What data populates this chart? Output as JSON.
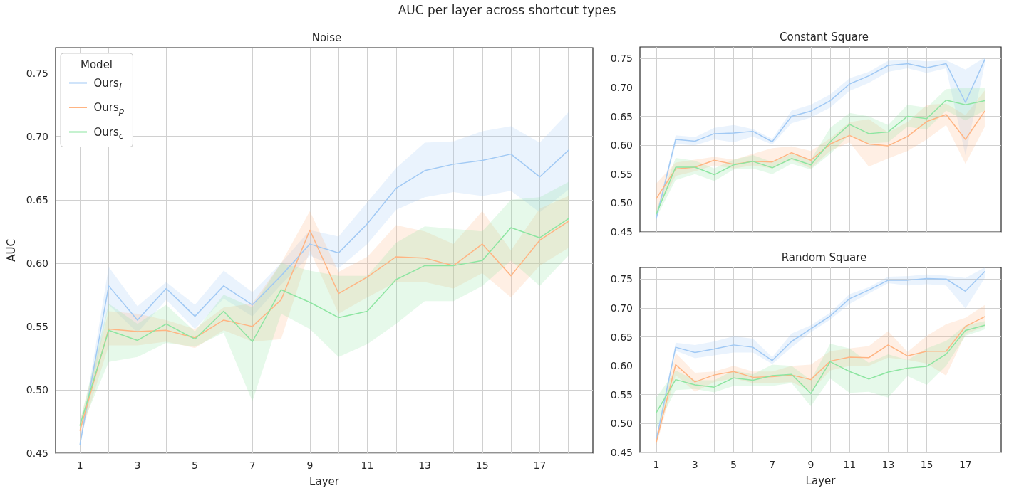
{
  "chart_data": [
    {
      "type": "line",
      "title": "AUC per layer across shortcut types",
      "subtitle": "Noise",
      "xlabel": "Layer",
      "ylabel": "AUC",
      "legend_title": "Model",
      "legend": "top left",
      "grid": true,
      "line_style": "solid",
      "marker": "none",
      "x": [
        1,
        2,
        3,
        4,
        5,
        6,
        7,
        8,
        9,
        10,
        11,
        12,
        13,
        14,
        15,
        16,
        17,
        18
      ],
      "xlim": [
        0.15,
        18.85
      ],
      "xticks": [
        1,
        {
          "value": 2,
          "label": null
        },
        3,
        {
          "value": 4,
          "label": null
        },
        5,
        {
          "value": 6,
          "label": null
        },
        7,
        {
          "value": 8,
          "label": null
        },
        9,
        {
          "value": 10,
          "label": null
        },
        11,
        {
          "value": 12,
          "label": null
        },
        13,
        {
          "value": 14,
          "label": null
        },
        15,
        {
          "value": 16,
          "label": null
        },
        17,
        {
          "value": 18,
          "label": null
        }
      ],
      "ylim": [
        0.45,
        0.77
      ],
      "yticks": [
        {
          "value": 0.45,
          "label": "0.45"
        },
        {
          "value": 0.5,
          "label": "0.50"
        },
        {
          "value": 0.55,
          "label": "0.55"
        },
        {
          "value": 0.6,
          "label": "0.60"
        },
        {
          "value": 0.65,
          "label": "0.65"
        },
        {
          "value": 0.7,
          "label": "0.70"
        },
        {
          "value": 0.75,
          "label": "0.75"
        }
      ],
      "series": [
        {
          "name": "Ours$_{f}$",
          "color": "#a1c9f4",
          "values": [
            0.457,
            0.582,
            0.555,
            0.58,
            0.558,
            0.582,
            0.567,
            0.59,
            0.615,
            0.608,
            0.631,
            0.659,
            0.673,
            0.678,
            0.681,
            0.686,
            0.668,
            0.689
          ],
          "lower": [
            0.455,
            0.567,
            0.545,
            0.571,
            0.548,
            0.572,
            0.558,
            0.583,
            0.606,
            0.596,
            0.615,
            0.642,
            0.652,
            0.656,
            0.653,
            0.657,
            0.64,
            0.658
          ],
          "upper": [
            0.46,
            0.597,
            0.566,
            0.585,
            0.567,
            0.594,
            0.577,
            0.6,
            0.626,
            0.621,
            0.648,
            0.675,
            0.695,
            0.696,
            0.704,
            0.708,
            0.695,
            0.719
          ]
        },
        {
          "name": "Ours$_{p}$",
          "color": "#ffb482",
          "values": [
            0.468,
            0.548,
            0.546,
            0.547,
            0.541,
            0.555,
            0.55,
            0.571,
            0.626,
            0.576,
            0.589,
            0.605,
            0.604,
            0.598,
            0.615,
            0.59,
            0.618,
            0.633
          ],
          "lower": [
            0.462,
            0.535,
            0.535,
            0.538,
            0.533,
            0.547,
            0.538,
            0.54,
            0.61,
            0.56,
            0.573,
            0.585,
            0.585,
            0.58,
            0.592,
            0.573,
            0.598,
            0.612
          ],
          "upper": [
            0.475,
            0.562,
            0.56,
            0.555,
            0.548,
            0.565,
            0.568,
            0.6,
            0.641,
            0.593,
            0.605,
            0.63,
            0.625,
            0.615,
            0.641,
            0.61,
            0.643,
            0.653
          ]
        },
        {
          "name": "Ours$_{c}$",
          "color": "#8de5a1",
          "values": [
            0.472,
            0.547,
            0.539,
            0.552,
            0.54,
            0.562,
            0.538,
            0.579,
            0.569,
            0.557,
            0.562,
            0.587,
            0.598,
            0.598,
            0.602,
            0.628,
            0.62,
            0.635
          ],
          "lower": [
            0.468,
            0.522,
            0.526,
            0.537,
            0.534,
            0.545,
            0.491,
            0.56,
            0.548,
            0.526,
            0.536,
            0.552,
            0.57,
            0.57,
            0.582,
            0.602,
            0.582,
            0.606
          ],
          "upper": [
            0.475,
            0.568,
            0.552,
            0.567,
            0.546,
            0.575,
            0.565,
            0.6,
            0.594,
            0.59,
            0.59,
            0.616,
            0.629,
            0.627,
            0.625,
            0.65,
            0.652,
            0.664
          ]
        }
      ]
    },
    {
      "type": "line",
      "title": "Constant Square",
      "grid": true,
      "line_style": "solid",
      "marker": "none",
      "tick_labels": "y",
      "x": [
        1,
        2,
        3,
        4,
        5,
        6,
        7,
        8,
        9,
        10,
        11,
        12,
        13,
        14,
        15,
        16,
        17,
        18
      ],
      "xlim": [
        0.15,
        18.85
      ],
      "xticks": [
        {
          "value": 1,
          "label": null
        },
        {
          "value": 2,
          "label": null
        },
        {
          "value": 3,
          "label": null
        },
        {
          "value": 4,
          "label": null
        },
        {
          "value": 5,
          "label": null
        },
        {
          "value": 6,
          "label": null
        },
        {
          "value": 7,
          "label": null
        },
        {
          "value": 8,
          "label": null
        },
        {
          "value": 9,
          "label": null
        },
        {
          "value": 10,
          "label": null
        },
        {
          "value": 11,
          "label": null
        },
        {
          "value": 12,
          "label": null
        },
        {
          "value": 13,
          "label": null
        },
        {
          "value": 14,
          "label": null
        },
        {
          "value": 15,
          "label": null
        },
        {
          "value": 16,
          "label": null
        },
        {
          "value": 17,
          "label": null
        },
        {
          "value": 18,
          "label": null
        }
      ],
      "ylim": [
        0.45,
        0.77
      ],
      "yticks": [
        {
          "value": 0.45,
          "label": "0.45"
        },
        {
          "value": 0.5,
          "label": "0.50"
        },
        {
          "value": 0.55,
          "label": "0.55"
        },
        {
          "value": 0.6,
          "label": "0.60"
        },
        {
          "value": 0.65,
          "label": "0.65"
        },
        {
          "value": 0.7,
          "label": "0.70"
        },
        {
          "value": 0.75,
          "label": "0.75"
        }
      ],
      "series": [
        {
          "color": "#a1c9f4",
          "values": [
            0.474,
            0.61,
            0.607,
            0.62,
            0.621,
            0.624,
            0.606,
            0.65,
            0.659,
            0.677,
            0.706,
            0.72,
            0.738,
            0.741,
            0.734,
            0.741,
            0.674,
            0.748
          ],
          "lower": [
            0.47,
            0.602,
            0.6,
            0.61,
            0.605,
            0.615,
            0.601,
            0.638,
            0.648,
            0.665,
            0.694,
            0.708,
            0.727,
            0.733,
            0.725,
            0.733,
            0.583,
            0.74
          ],
          "upper": [
            0.478,
            0.617,
            0.614,
            0.63,
            0.635,
            0.628,
            0.611,
            0.66,
            0.67,
            0.688,
            0.716,
            0.727,
            0.746,
            0.748,
            0.745,
            0.747,
            0.731,
            0.752
          ]
        },
        {
          "color": "#ffb482",
          "values": [
            0.508,
            0.559,
            0.562,
            0.574,
            0.567,
            0.572,
            0.571,
            0.587,
            0.574,
            0.602,
            0.617,
            0.602,
            0.599,
            0.615,
            0.641,
            0.653,
            0.61,
            0.659
          ],
          "lower": [
            0.485,
            0.547,
            0.555,
            0.565,
            0.56,
            0.565,
            0.56,
            0.575,
            0.56,
            0.59,
            0.605,
            0.563,
            0.577,
            0.59,
            0.61,
            0.635,
            0.568,
            0.632
          ],
          "upper": [
            0.534,
            0.57,
            0.575,
            0.58,
            0.575,
            0.585,
            0.595,
            0.598,
            0.59,
            0.612,
            0.64,
            0.645,
            0.622,
            0.64,
            0.67,
            0.672,
            0.652,
            0.695
          ]
        },
        {
          "color": "#8de5a1",
          "values": [
            0.481,
            0.562,
            0.562,
            0.549,
            0.566,
            0.572,
            0.561,
            0.577,
            0.566,
            0.606,
            0.636,
            0.62,
            0.623,
            0.65,
            0.646,
            0.678,
            0.67,
            0.677
          ],
          "lower": [
            0.475,
            0.54,
            0.55,
            0.538,
            0.558,
            0.56,
            0.55,
            0.568,
            0.558,
            0.585,
            0.618,
            0.603,
            0.605,
            0.632,
            0.627,
            0.66,
            0.643,
            0.66
          ],
          "upper": [
            0.488,
            0.578,
            0.573,
            0.56,
            0.575,
            0.583,
            0.571,
            0.585,
            0.575,
            0.63,
            0.656,
            0.65,
            0.635,
            0.67,
            0.665,
            0.697,
            0.7,
            0.7
          ]
        }
      ]
    },
    {
      "type": "line",
      "title": "Random Square",
      "xlabel": "Layer",
      "grid": true,
      "line_style": "solid",
      "marker": "none",
      "x": [
        1,
        2,
        3,
        4,
        5,
        6,
        7,
        8,
        9,
        10,
        11,
        12,
        13,
        14,
        15,
        16,
        17,
        18
      ],
      "xlim": [
        0.15,
        18.85
      ],
      "xticks": [
        1,
        {
          "value": 2,
          "label": null
        },
        3,
        {
          "value": 4,
          "label": null
        },
        5,
        {
          "value": 6,
          "label": null
        },
        7,
        {
          "value": 8,
          "label": null
        },
        9,
        {
          "value": 10,
          "label": null
        },
        11,
        {
          "value": 12,
          "label": null
        },
        13,
        {
          "value": 14,
          "label": null
        },
        15,
        {
          "value": 16,
          "label": null
        },
        17,
        {
          "value": 18,
          "label": null
        }
      ],
      "ylim": [
        0.45,
        0.77
      ],
      "yticks": [
        {
          "value": 0.45,
          "label": "0.45"
        },
        {
          "value": 0.5,
          "label": "0.50"
        },
        {
          "value": 0.55,
          "label": "0.55"
        },
        {
          "value": 0.6,
          "label": "0.60"
        },
        {
          "value": 0.65,
          "label": "0.65"
        },
        {
          "value": 0.7,
          "label": "0.70"
        },
        {
          "value": 0.75,
          "label": "0.75"
        }
      ],
      "series": [
        {
          "color": "#a1c9f4",
          "values": [
            0.472,
            0.632,
            0.623,
            0.629,
            0.636,
            0.632,
            0.609,
            0.642,
            0.664,
            0.686,
            0.716,
            0.731,
            0.748,
            0.748,
            0.751,
            0.75,
            0.729,
            0.763
          ],
          "lower": [
            0.466,
            0.626,
            0.613,
            0.618,
            0.623,
            0.623,
            0.603,
            0.632,
            0.658,
            0.68,
            0.707,
            0.725,
            0.743,
            0.739,
            0.741,
            0.739,
            0.699,
            0.752
          ],
          "upper": [
            0.478,
            0.64,
            0.636,
            0.642,
            0.651,
            0.647,
            0.615,
            0.656,
            0.67,
            0.692,
            0.724,
            0.736,
            0.754,
            0.755,
            0.758,
            0.756,
            0.752,
            0.77
          ]
        },
        {
          "color": "#ffb482",
          "values": [
            0.468,
            0.602,
            0.572,
            0.584,
            0.59,
            0.58,
            0.581,
            0.584,
            0.576,
            0.608,
            0.615,
            0.614,
            0.636,
            0.617,
            0.625,
            0.625,
            0.668,
            0.685
          ],
          "lower": [
            0.462,
            0.584,
            0.555,
            0.572,
            0.578,
            0.57,
            0.57,
            0.572,
            0.556,
            0.592,
            0.6,
            0.6,
            0.614,
            0.61,
            0.604,
            0.583,
            0.655,
            0.668
          ],
          "upper": [
            0.476,
            0.622,
            0.588,
            0.59,
            0.6,
            0.59,
            0.59,
            0.6,
            0.602,
            0.625,
            0.63,
            0.634,
            0.66,
            0.624,
            0.652,
            0.672,
            0.683,
            0.705
          ]
        },
        {
          "color": "#8de5a1",
          "values": [
            0.519,
            0.576,
            0.567,
            0.563,
            0.579,
            0.575,
            0.583,
            0.585,
            0.552,
            0.607,
            0.59,
            0.577,
            0.589,
            0.596,
            0.599,
            0.62,
            0.661,
            0.67
          ],
          "lower": [
            0.492,
            0.558,
            0.56,
            0.554,
            0.565,
            0.565,
            0.565,
            0.57,
            0.53,
            0.578,
            0.553,
            0.555,
            0.545,
            0.582,
            0.567,
            0.6,
            0.652,
            0.663
          ],
          "upper": [
            0.545,
            0.592,
            0.575,
            0.575,
            0.592,
            0.585,
            0.602,
            0.6,
            0.575,
            0.638,
            0.63,
            0.605,
            0.62,
            0.61,
            0.63,
            0.643,
            0.67,
            0.677
          ]
        }
      ]
    }
  ]
}
